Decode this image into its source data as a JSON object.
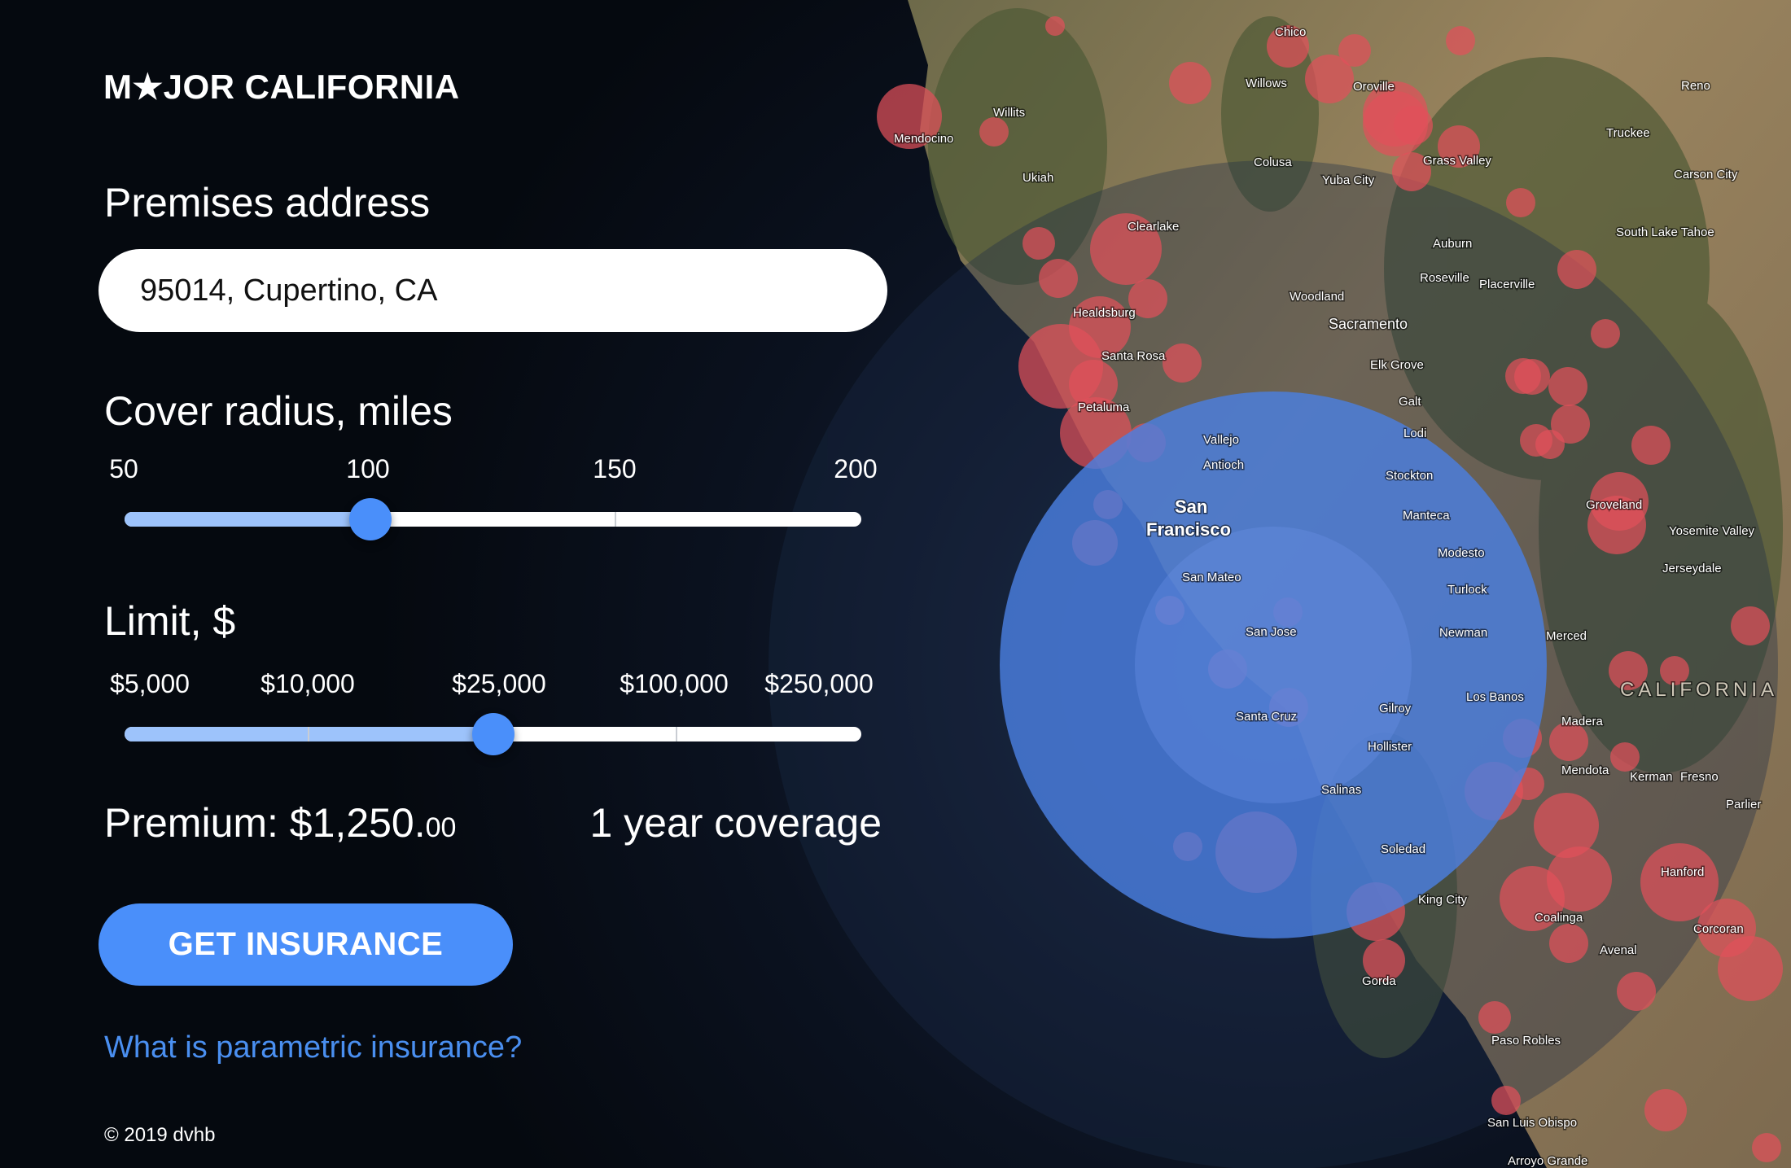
{
  "brand": {
    "logo_text": "M★JOR CALIFORNIA"
  },
  "address": {
    "label": "Premises address",
    "value": "95014, Cupertino, CA"
  },
  "radius": {
    "label": "Cover radius, miles",
    "ticks": [
      "50",
      "100",
      "150",
      "200"
    ],
    "value": 100,
    "min": 50,
    "max": 200
  },
  "limit": {
    "label": "Limit, $",
    "ticks": [
      "$5,000",
      "$10,000",
      "$25,000",
      "$100,000",
      "$250,000"
    ],
    "value": "$25,000",
    "position_fraction": 0.5
  },
  "premium": {
    "label": "Premium: $1,250.",
    "cents": "00",
    "coverage": "1 year coverage"
  },
  "cta": {
    "label": "GET INSURANCE"
  },
  "link": {
    "label": "What is parametric insurance?"
  },
  "footer": {
    "copyright": "© 2019 dvhb"
  },
  "colors": {
    "accent": "#4a8ffa",
    "track_fill": "#9dc3fb",
    "risk": "#e0505a",
    "coverage_circle": "#4a7fe0",
    "background": "#05090f"
  },
  "map": {
    "labels": [
      "Chico",
      "Willows",
      "Oroville",
      "Reno",
      "Truckee",
      "Carson City",
      "Mendocino",
      "Willits",
      "Ukiah",
      "Colusa",
      "Yuba City",
      "Grass Valley",
      "Clearlake",
      "Auburn",
      "South Lake Tahoe",
      "Roseville",
      "Placerville",
      "Healdsburg",
      "Woodland",
      "Sacramento",
      "Santa Rosa",
      "Elk Grove",
      "Petaluma",
      "Galt",
      "Vallejo",
      "Lodi",
      "San",
      "Francisco",
      "Antioch",
      "Stockton",
      "Manteca",
      "Modesto",
      "San Mateo",
      "Turlock",
      "San Jose",
      "Newman",
      "Merced",
      "Santa Cruz",
      "Gilroy",
      "Los Banos",
      "Madera",
      "Hollister",
      "Mendota",
      "Kerman",
      "Fresno",
      "Salinas",
      "Soledad",
      "King City",
      "Coalinga",
      "Hanford",
      "Avenal",
      "Corcoran",
      "Gorda",
      "Paso Robles",
      "San Luis Obispo",
      "Arroyo Grande",
      "Groveland",
      "Yosemite Valley",
      "Jerseydale",
      "CALIFORNIA",
      "Parlier"
    ]
  }
}
